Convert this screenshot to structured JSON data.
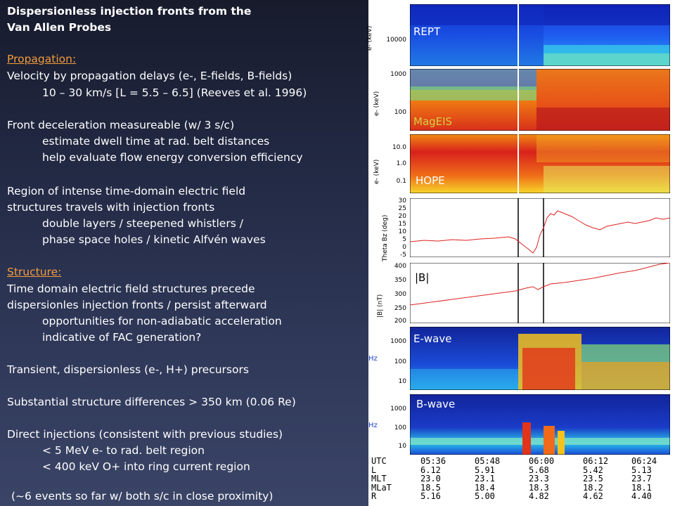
{
  "title_line1": "Dispersionless injection fronts from the",
  "title_line2": "Van Allen Probes",
  "propagation_heading": "Propagation: ",
  "lines": [
    "Velocity by propagation delays (e-, E-fields, B-fields)",
    "10 – 30 km/s [L = 5.5 – 6.5] (Reeves et al. 1996)",
    "Front deceleration measureable (w/ 3 s/c)",
    "estimate dwell time at rad. belt distances",
    "help evaluate flow energy conversion efficiency",
    "Region of intense time-domain electric field",
    "structures travels with injection fronts",
    "double layers / steepened whistlers /",
    "phase space holes / kinetic Alfvén waves"
  ],
  "structure_heading": "Structure:",
  "lines2": [
    "Time domain electric field structures precede",
    "dispersionles injection fronts / persist afterward",
    "opportunities for non-adiabatic acceleration",
    "indicative of FAC generation?",
    "Transient, dispersionless (e-, H+) precursors",
    "Substantial structure differences > 350 km (0.06 Re)",
    "Direct injections (consistent with previous studies)",
    "< 5 MeV e- to rad. belt region",
    "< 400 keV O+ into ring current region",
    "(~6 events so far w/ both s/c in close proximity)"
  ],
  "panels": {
    "rept": "REPT",
    "mageis": "MagEIS",
    "hope": "HOPE",
    "bmag": "|B|",
    "ewave": "E-wave",
    "bwave": "B-wave"
  },
  "axes": {
    "rept_ylabel": "e- (keV)",
    "rept_tick": "10000",
    "mageis_ylabel": "e- (keV)",
    "mageis_ticks": [
      "1000",
      "100"
    ],
    "hope_ylabel": "e- (keV)",
    "hope_ticks": [
      "10.0",
      "1.0",
      "0.1"
    ],
    "theta_ylabel": "Theta Bz (deg)",
    "theta_ticks": [
      "30",
      "25",
      "20",
      "15",
      "10",
      "5",
      "0",
      "-5"
    ],
    "b_ylabel": "|B| (nT)",
    "b_ticks": [
      "400",
      "350",
      "300",
      "250",
      "200"
    ],
    "hz": "Hz",
    "ewave_ticks": [
      "1000",
      "100",
      "10"
    ],
    "bwave_ticks": [
      "1000",
      "100",
      "10"
    ]
  },
  "table": {
    "rows": [
      "UTC",
      "L",
      "MLT",
      "MLaT",
      "R"
    ],
    "cols": [
      [
        "05:36",
        "6.12",
        "23.0",
        "18.5",
        "5.16"
      ],
      [
        "05:48",
        "5.91",
        "23.1",
        "18.4",
        "5.00"
      ],
      [
        "06:00",
        "5.68",
        "23.3",
        "18.3",
        "4.82"
      ],
      [
        "06:12",
        "5.42",
        "23.5",
        "18.2",
        "4.62"
      ],
      [
        "06:24",
        "5.13",
        "23.7",
        "18.1",
        "4.40"
      ]
    ]
  }
}
